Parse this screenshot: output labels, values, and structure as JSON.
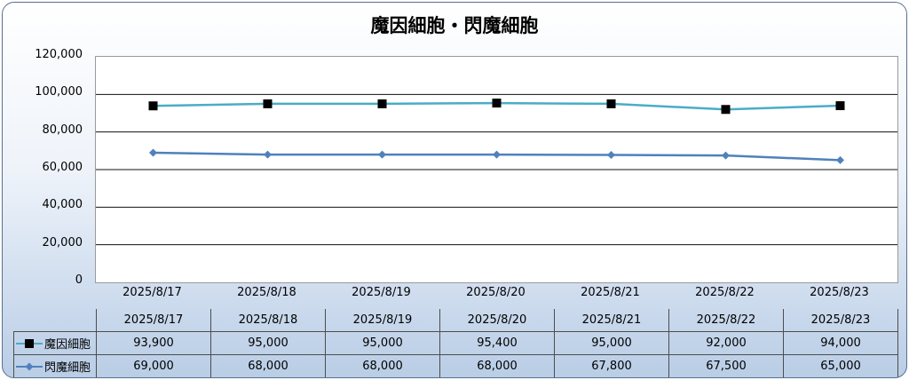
{
  "chart_data": {
    "type": "line",
    "title": "魔因細胞・閃魔細胞",
    "categories": [
      "2025/8/17",
      "2025/8/18",
      "2025/8/19",
      "2025/8/20",
      "2025/8/21",
      "2025/8/22",
      "2025/8/23"
    ],
    "series": [
      {
        "name": "魔因細胞",
        "values": [
          93900,
          95000,
          95000,
          95400,
          95000,
          92000,
          94000
        ],
        "value_labels": [
          "93,900",
          "95,000",
          "95,000",
          "95,400",
          "95,000",
          "92,000",
          "94,000"
        ],
        "color": "#4bacc6",
        "marker": "square",
        "marker_color": "#000000"
      },
      {
        "name": "閃魔細胞",
        "values": [
          69000,
          68000,
          68000,
          68000,
          67800,
          67500,
          65000
        ],
        "value_labels": [
          "69,000",
          "68,000",
          "68,000",
          "68,000",
          "67,800",
          "67,500",
          "65,000"
        ],
        "color": "#4f81bd",
        "marker": "diamond",
        "marker_color": "#4f81bd"
      }
    ],
    "ylim": [
      0,
      120000
    ],
    "yticks": [
      "0",
      "20,000",
      "40,000",
      "60,000",
      "80,000",
      "100,000",
      "120,000"
    ],
    "grid": true,
    "legend": "data-table"
  }
}
